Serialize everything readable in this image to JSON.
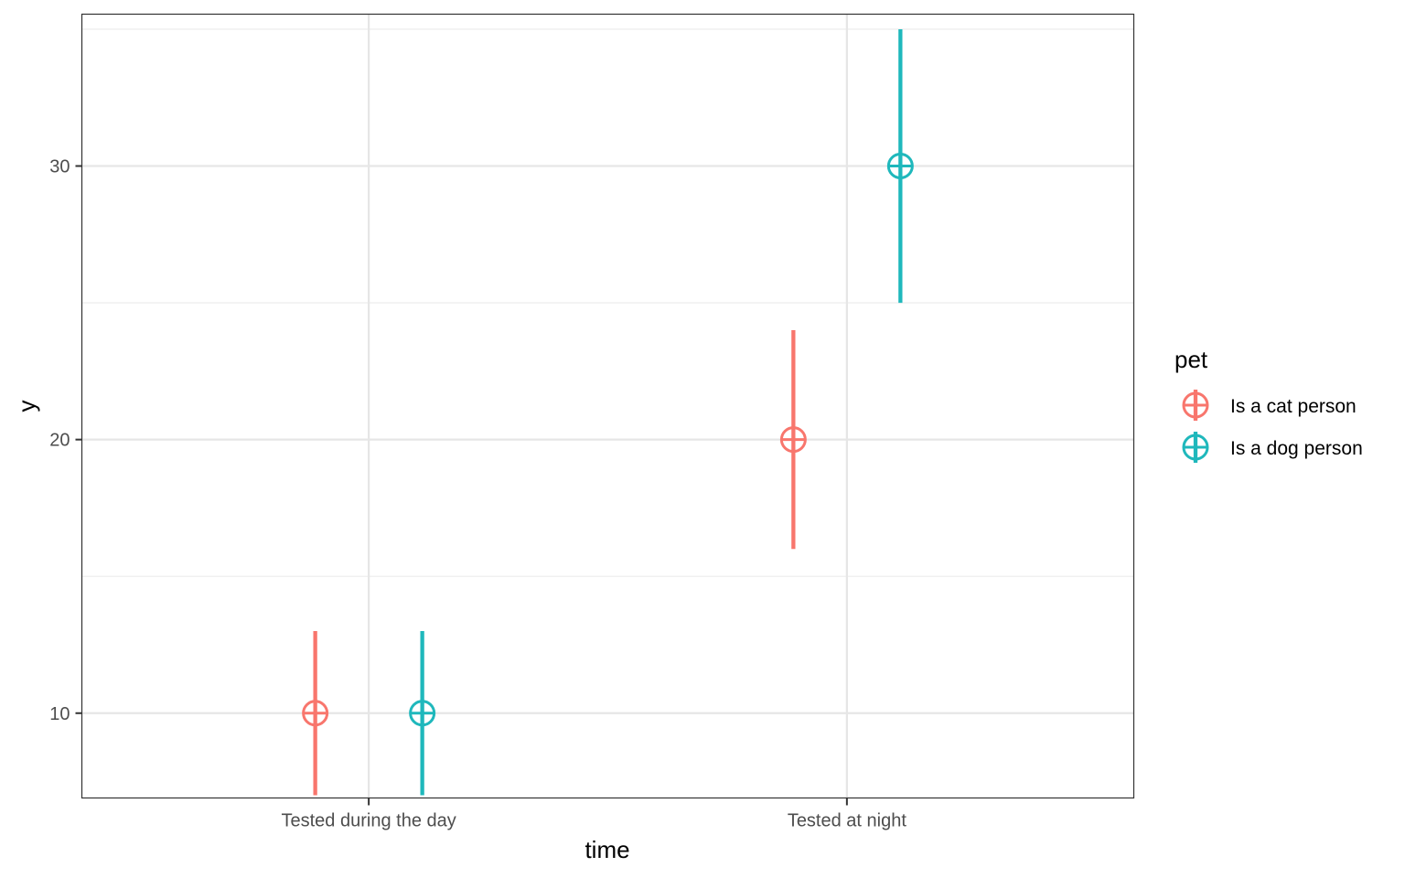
{
  "chart_data": {
    "type": "scatter",
    "categories": [
      "Tested during the day",
      "Tested at night"
    ],
    "xlabel": "time",
    "ylabel": "y",
    "ylim": [
      6.9,
      35.55
    ],
    "y_major_ticks": [
      10,
      20,
      30
    ],
    "y_minor_ticks": [
      15,
      25,
      35
    ],
    "grid": true,
    "legend": {
      "title": "pet",
      "placement": "right"
    },
    "series": [
      {
        "name": "Is a cat person",
        "color": "#F8766D",
        "points": [
          {
            "category": "Tested during the day",
            "y": 10,
            "ymin": 7,
            "ymax": 13
          },
          {
            "category": "Tested at night",
            "y": 20,
            "ymin": 16,
            "ymax": 24
          }
        ]
      },
      {
        "name": "Is a dog person",
        "color": "#1FB8BC",
        "points": [
          {
            "category": "Tested during the day",
            "y": 10,
            "ymin": 7,
            "ymax": 13
          },
          {
            "category": "Tested at night",
            "y": 30,
            "ymin": 25,
            "ymax": 35
          }
        ]
      }
    ]
  }
}
